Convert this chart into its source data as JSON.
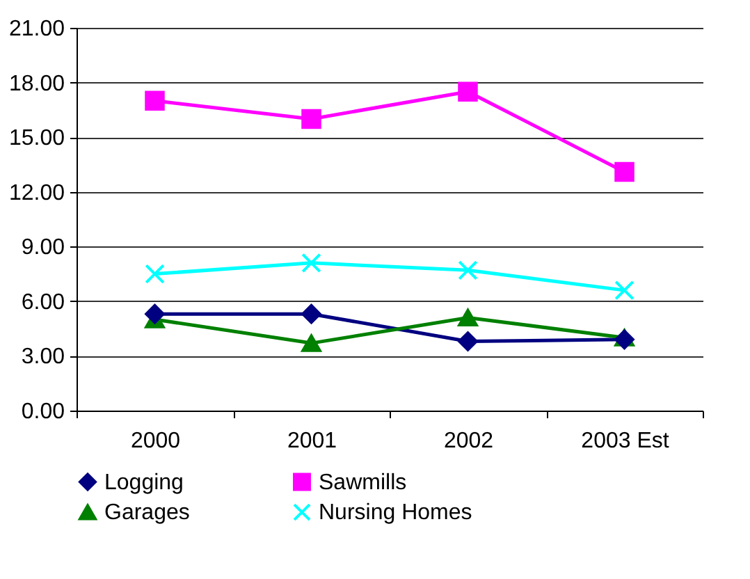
{
  "chart_data": {
    "type": "line",
    "categories": [
      "2000",
      "2001",
      "2002",
      "2003 Est"
    ],
    "series": [
      {
        "name": "Logging",
        "color": "#000080",
        "marker": "diamond",
        "values": [
          5.3,
          5.3,
          3.8,
          3.9
        ]
      },
      {
        "name": "Sawmills",
        "color": "#ff00ff",
        "marker": "square",
        "values": [
          17.0,
          16.0,
          17.5,
          13.1
        ]
      },
      {
        "name": "Garages",
        "color": "#008000",
        "marker": "triangle",
        "values": [
          5.0,
          3.7,
          5.1,
          4.0
        ]
      },
      {
        "name": "Nursing Homes",
        "color": "#00ffff",
        "marker": "cross",
        "values": [
          7.5,
          8.1,
          7.7,
          6.6
        ]
      }
    ],
    "ylim": [
      0,
      21
    ],
    "yticks": [
      {
        "value": 0,
        "label": "0.00"
      },
      {
        "value": 3,
        "label": "3.00"
      },
      {
        "value": 6,
        "label": "6.00"
      },
      {
        "value": 9,
        "label": "9.00"
      },
      {
        "value": 12,
        "label": "12.00"
      },
      {
        "value": 15,
        "label": "15.00"
      },
      {
        "value": 18,
        "label": "18.00"
      },
      {
        "value": 21,
        "label": "21.00"
      }
    ],
    "grid": "y",
    "legend": "bottom",
    "line_style": "solid"
  }
}
